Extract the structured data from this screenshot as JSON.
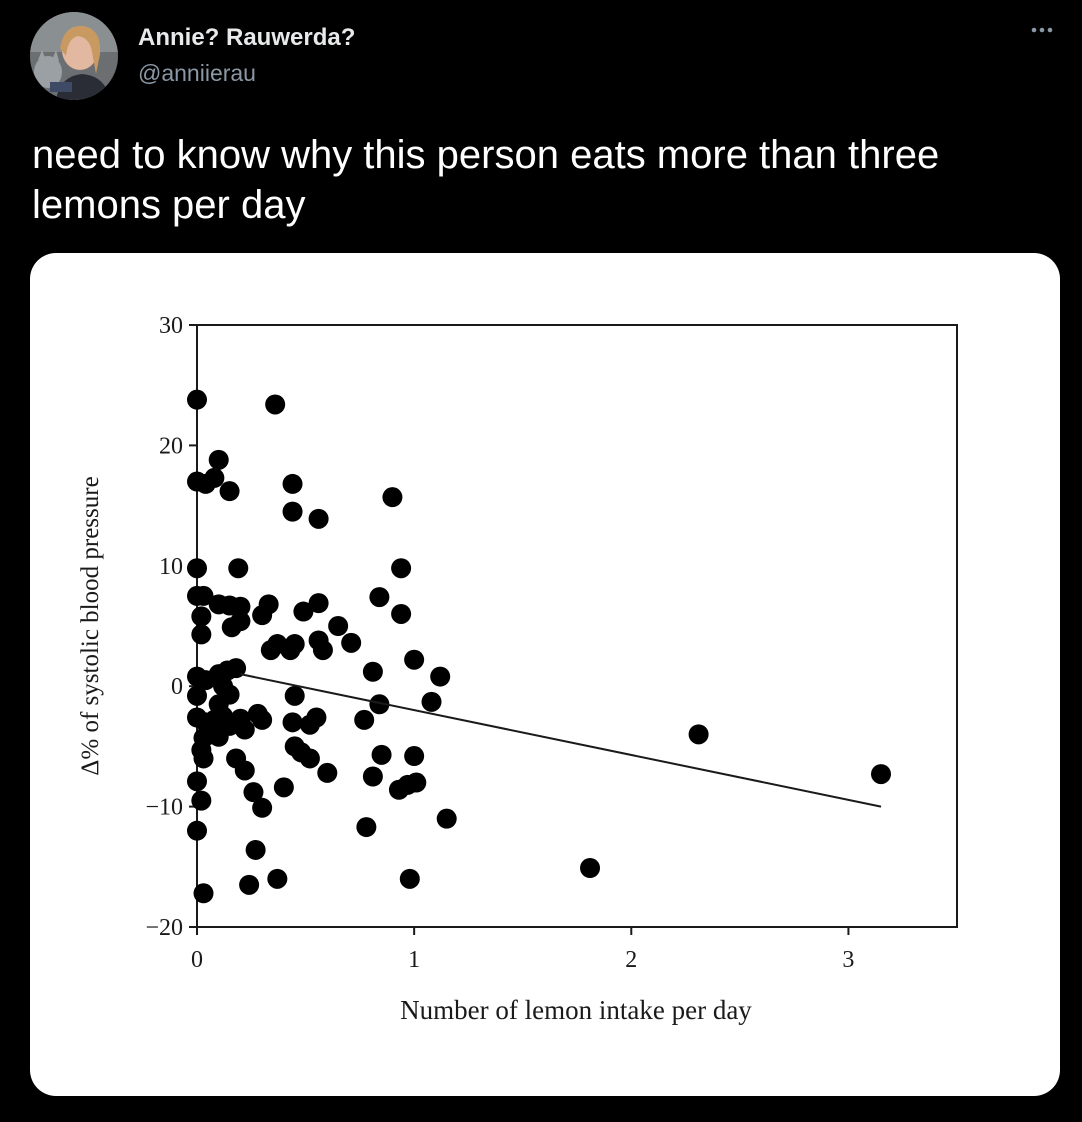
{
  "tweet": {
    "author_name": "Annie? Rauwerda?",
    "author_handle": "@anniierau",
    "more_icon": "more-horizontal-icon",
    "text": "need to know why this person eats more than three lemons per day"
  },
  "colors": {
    "background": "#000000",
    "name": "#e7e9ea",
    "handle": "#8b98a5",
    "card": "#ffffff",
    "marker": "#000000"
  },
  "chart_data": {
    "type": "scatter",
    "title": "",
    "xlabel": "Number of lemon intake per day",
    "ylabel": "Δ% of systolic blood pressure",
    "xlim": [
      0,
      3.5
    ],
    "ylim": [
      -20,
      30
    ],
    "xticks": [
      "0",
      "1",
      "2",
      "3"
    ],
    "yticks": [
      "30",
      "20",
      "10",
      "0",
      "−10",
      "−20"
    ],
    "grid": false,
    "legend": "none",
    "points": [
      [
        0.0,
        23.8
      ],
      [
        0.0,
        17.0
      ],
      [
        0.04,
        16.8
      ],
      [
        0.1,
        18.8
      ],
      [
        0.08,
        17.3
      ],
      [
        0.15,
        16.2
      ],
      [
        0.0,
        9.8
      ],
      [
        0.0,
        7.5
      ],
      [
        0.03,
        7.5
      ],
      [
        0.02,
        5.8
      ],
      [
        0.02,
        4.3
      ],
      [
        0.1,
        6.8
      ],
      [
        0.15,
        6.7
      ],
      [
        0.19,
        9.8
      ],
      [
        0.2,
        6.6
      ],
      [
        0.2,
        5.4
      ],
      [
        0.16,
        4.9
      ],
      [
        0.3,
        5.9
      ],
      [
        0.33,
        6.8
      ],
      [
        0.34,
        3.0
      ],
      [
        0.37,
        3.5
      ],
      [
        0.43,
        3.0
      ],
      [
        0.45,
        3.5
      ],
      [
        0.44,
        16.8
      ],
      [
        0.44,
        14.5
      ],
      [
        0.56,
        13.9
      ],
      [
        0.49,
        6.2
      ],
      [
        0.56,
        6.9
      ],
      [
        0.56,
        3.8
      ],
      [
        0.58,
        3.0
      ],
      [
        0.65,
        5.0
      ],
      [
        0.71,
        3.6
      ],
      [
        0.36,
        23.4
      ],
      [
        0.9,
        15.7
      ],
      [
        0.94,
        9.8
      ],
      [
        0.84,
        7.4
      ],
      [
        0.94,
        6.0
      ],
      [
        0.81,
        1.2
      ],
      [
        1.0,
        2.2
      ],
      [
        1.12,
        0.8
      ],
      [
        1.08,
        -1.3
      ],
      [
        0.84,
        -1.5
      ],
      [
        0.77,
        -2.8
      ],
      [
        0.0,
        0.8
      ],
      [
        0.0,
        -0.8
      ],
      [
        0.04,
        0.5
      ],
      [
        0.1,
        1.0
      ],
      [
        0.14,
        1.3
      ],
      [
        0.18,
        1.5
      ],
      [
        0.12,
        0.0
      ],
      [
        0.15,
        -0.7
      ],
      [
        0.1,
        -1.5
      ],
      [
        0.0,
        -2.6
      ],
      [
        0.04,
        -3.0
      ],
      [
        0.08,
        -2.8
      ],
      [
        0.12,
        -2.5
      ],
      [
        0.15,
        -3.3
      ],
      [
        0.2,
        -2.7
      ],
      [
        0.22,
        -3.6
      ],
      [
        0.03,
        -4.3
      ],
      [
        0.07,
        -4.0
      ],
      [
        0.1,
        -4.2
      ],
      [
        0.02,
        -5.3
      ],
      [
        0.03,
        -6.0
      ],
      [
        0.18,
        -6.0
      ],
      [
        0.22,
        -7.0
      ],
      [
        0.28,
        -2.3
      ],
      [
        0.3,
        -2.8
      ],
      [
        0.45,
        -0.8
      ],
      [
        0.44,
        -3.0
      ],
      [
        0.52,
        -3.2
      ],
      [
        0.55,
        -2.6
      ],
      [
        0.45,
        -5.0
      ],
      [
        0.48,
        -5.5
      ],
      [
        0.52,
        -6.0
      ],
      [
        0.6,
        -7.2
      ],
      [
        0.85,
        -5.7
      ],
      [
        1.0,
        -5.8
      ],
      [
        0.81,
        -7.5
      ],
      [
        0.0,
        -7.9
      ],
      [
        0.02,
        -9.5
      ],
      [
        0.0,
        -12.0
      ],
      [
        0.26,
        -8.8
      ],
      [
        0.3,
        -10.1
      ],
      [
        0.4,
        -8.4
      ],
      [
        0.93,
        -8.6
      ],
      [
        0.97,
        -8.2
      ],
      [
        1.01,
        -8.0
      ],
      [
        0.78,
        -11.7
      ],
      [
        1.15,
        -11.0
      ],
      [
        0.27,
        -13.6
      ],
      [
        0.24,
        -16.5
      ],
      [
        0.37,
        -16.0
      ],
      [
        0.98,
        -16.0
      ],
      [
        0.03,
        -17.2
      ],
      [
        1.81,
        -15.1
      ],
      [
        2.31,
        -4.0
      ],
      [
        3.15,
        -7.3
      ]
    ],
    "trendline": {
      "x": [
        0.2,
        3.15
      ],
      "y": [
        1.0,
        -10.0
      ]
    }
  }
}
